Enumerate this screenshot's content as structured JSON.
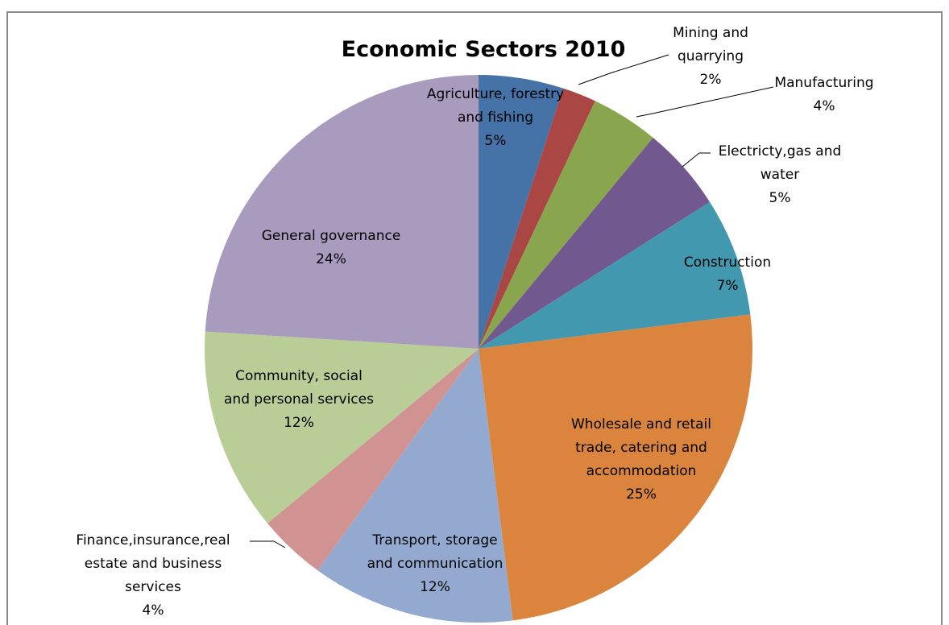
{
  "chart_data": {
    "type": "pie",
    "title": "Economic Sectors 2010",
    "slices": [
      {
        "label": [
          "Agriculture, forestry",
          "and fishing"
        ],
        "value_label": "5%",
        "value": 5,
        "color": "#4572a7"
      },
      {
        "label": [
          "Mining and",
          "quarrying"
        ],
        "value_label": "2%",
        "value": 2,
        "color": "#aa4643"
      },
      {
        "label": [
          "Manufacturing"
        ],
        "value_label": "4%",
        "value": 4,
        "color": "#89a54e"
      },
      {
        "label": [
          "Electricty,gas and",
          "water"
        ],
        "value_label": "5%",
        "value": 5,
        "color": "#71588f"
      },
      {
        "label": [
          "Construction"
        ],
        "value_label": "7%",
        "value": 7,
        "color": "#4198af"
      },
      {
        "label": [
          "Wholesale and retail",
          "trade, catering and",
          "accommodation"
        ],
        "value_label": "25%",
        "value": 25,
        "color": "#db843d"
      },
      {
        "label": [
          "Transport, storage",
          "and communication"
        ],
        "value_label": "12%",
        "value": 12,
        "color": "#93a9d0"
      },
      {
        "label": [
          "Finance,insurance,real",
          "estate and business",
          "services"
        ],
        "value_label": "4%",
        "value": 4,
        "color": "#d09392"
      },
      {
        "label": [
          "Community, social",
          "and personal services"
        ],
        "value_label": "12%",
        "value": 12,
        "color": "#b9cd96"
      },
      {
        "label": [
          "General governance"
        ],
        "value_label": "24%",
        "value": 24,
        "color": "#a99bbd"
      }
    ]
  }
}
